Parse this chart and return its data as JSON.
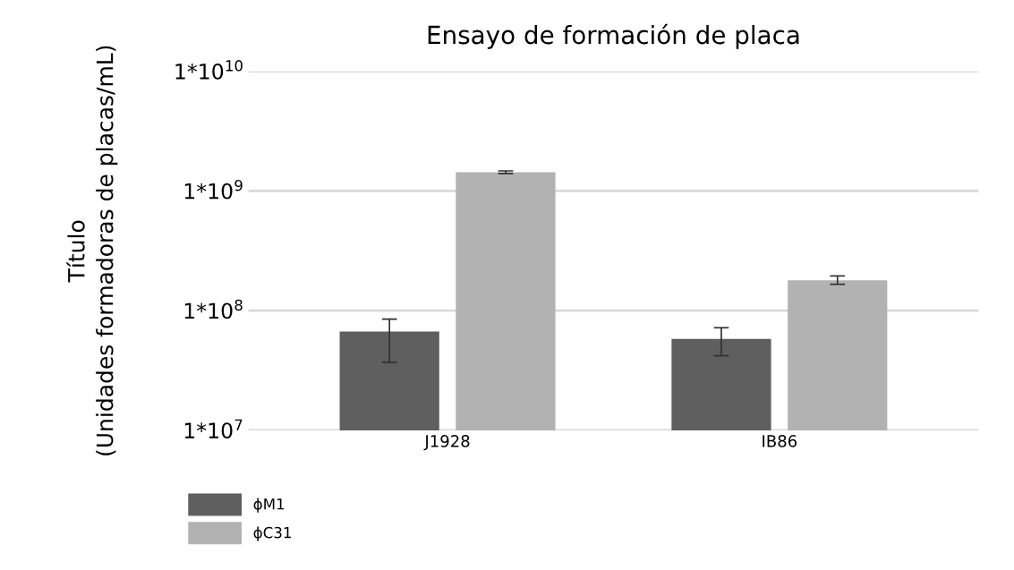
{
  "chart_data": {
    "type": "bar",
    "title": "Ensayo de formación de placa",
    "ylabel": "Título\n(Unidades formadoras de placas/mL)",
    "categories": [
      "J1928",
      "IB86"
    ],
    "series": [
      {
        "name": "ϕM1",
        "color": "#5f5f5f",
        "values": [
          67000000,
          58000000
        ],
        "errors": [
          [
            37000000,
            85000000
          ],
          [
            42000000,
            72000000
          ]
        ]
      },
      {
        "name": "ϕC31",
        "color": "#b2b2b2",
        "values": [
          1430000000,
          179000000
        ],
        "errors": [
          [
            1400000000,
            1470000000
          ],
          [
            166000000,
            195000000
          ]
        ]
      }
    ],
    "log": "y",
    "ylim": [
      10000000,
      10000000000
    ],
    "yticks": [
      {
        "value": 10000000,
        "label": "1*10$^{7}$"
      },
      {
        "value": 100000000,
        "label": "1*10$^{8}$"
      },
      {
        "value": 1000000000,
        "label": "1*10$^{9}$"
      },
      {
        "value": 10000000000,
        "label": "1*10$^{10}$"
      }
    ],
    "grid": "y",
    "legend": "bottom left"
  }
}
